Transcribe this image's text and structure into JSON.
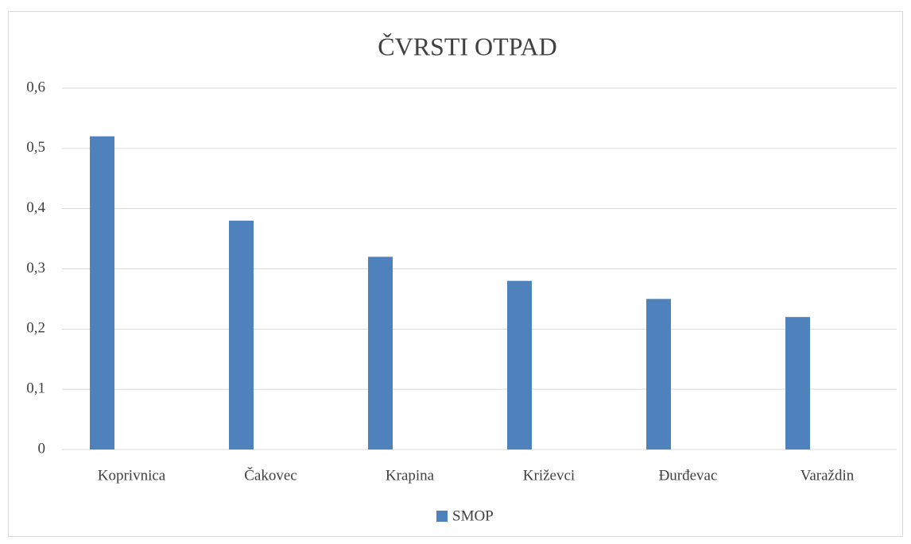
{
  "chart_data": {
    "type": "bar",
    "title": "ČVRSTI OTPAD",
    "categories": [
      "Koprivnica",
      "Čakovec",
      "Krapina",
      "Križevci",
      "Đurđevac",
      "Varaždin"
    ],
    "series": [
      {
        "name": "SMOP",
        "color": "#4f81bd",
        "values": [
          0.52,
          0.38,
          0.32,
          0.28,
          0.25,
          0.22
        ]
      }
    ],
    "ylim": [
      0,
      0.6
    ],
    "yticks": [
      0,
      {
        "value": 0.1,
        "label": "0,1"
      },
      {
        "value": 0.2,
        "label": "0,2"
      },
      {
        "value": 0.3,
        "label": "0,3"
      },
      {
        "value": 0.4,
        "label": "0,4"
      },
      {
        "value": 0.5,
        "label": "0,5"
      },
      {
        "value": 0.6,
        "label": "0,6"
      }
    ],
    "grid": true,
    "legend": "bottom"
  }
}
